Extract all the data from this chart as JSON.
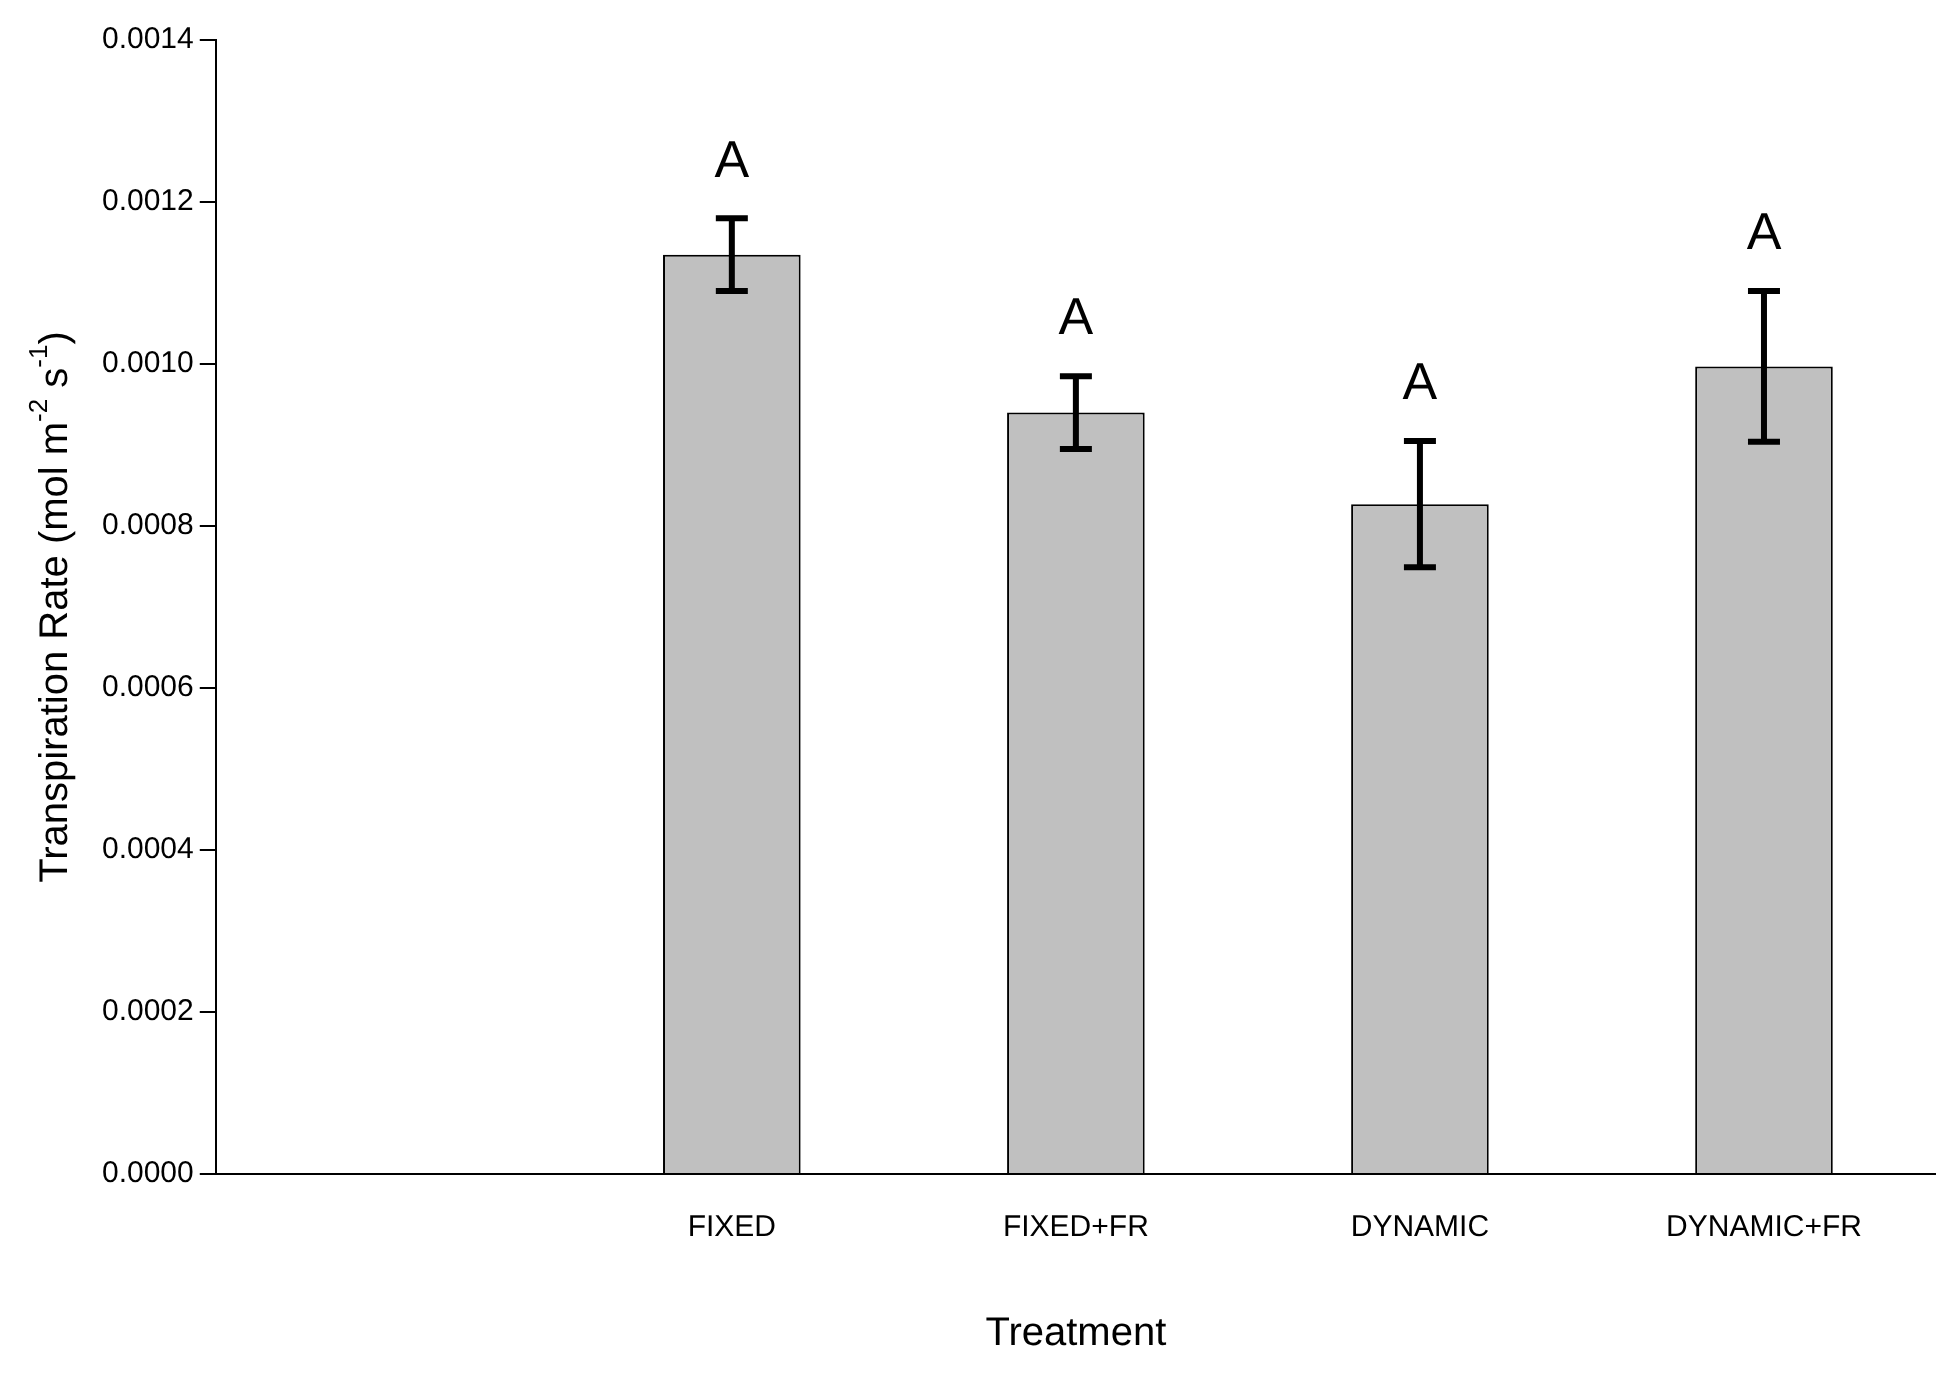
{
  "chart_data": {
    "type": "bar",
    "xlabel": "Treatment",
    "ylabel": "Transpiration Rate (mol m$^{-2}$ s$^{-1}$)",
    "categories": [
      null,
      "FIXED",
      "FIXED+FR",
      "DYNAMIC",
      "DYNAMIC+FR"
    ],
    "values": [
      null,
      0.001135,
      0.00094,
      0.000827,
      0.000997
    ],
    "errors": [
      null,
      4.5e-05,
      4.5e-05,
      7.8e-05,
      9.3e-05
    ],
    "color": "#c0c0c0",
    "ylim": [
      0,
      0.0014
    ],
    "yticks": [
      {
        "value": 0,
        "label": "0.0000"
      },
      {
        "value": 0.0002,
        "label": "0.0002"
      },
      {
        "value": 0.0004,
        "label": "0.0004"
      },
      {
        "value": 0.0006,
        "label": "0.0006"
      },
      {
        "value": 0.0008,
        "label": "0.0008"
      },
      {
        "value": 0.001,
        "label": "0.0010"
      },
      {
        "value": 0.0012,
        "label": "0.0012"
      },
      {
        "value": 0.0014,
        "label": "0.0014"
      }
    ],
    "grid": false,
    "legend": false,
    "annotations": [
      "A",
      "A",
      "A",
      "A"
    ]
  }
}
